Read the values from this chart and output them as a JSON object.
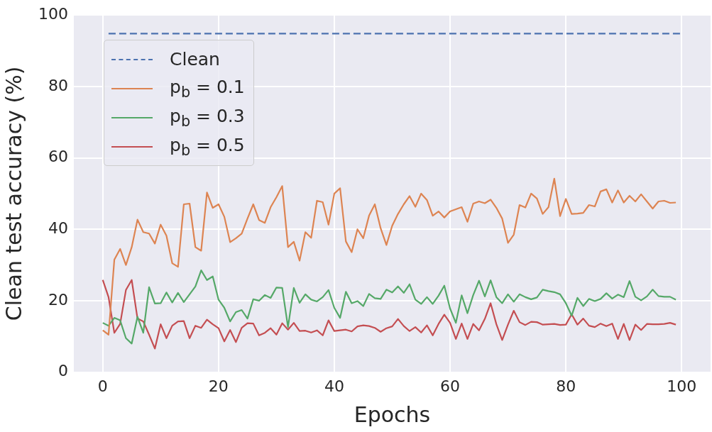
{
  "chart_data": {
    "type": "line",
    "xlabel": "Epochs",
    "ylabel": "Clean test accuracy (%)",
    "xlim": [
      -5,
      105
    ],
    "xticks": [
      0,
      20,
      40,
      60,
      80,
      100
    ],
    "ylim": [
      0,
      100
    ],
    "yticks": [
      0,
      20,
      40,
      60,
      80,
      100
    ],
    "grid": true,
    "legend": "top left",
    "marker": "none",
    "x": [
      0,
      1,
      2,
      3,
      4,
      5,
      6,
      7,
      8,
      9,
      10,
      11,
      12,
      13,
      14,
      15,
      16,
      17,
      18,
      19,
      20,
      21,
      22,
      23,
      24,
      25,
      26,
      27,
      28,
      29,
      30,
      31,
      32,
      33,
      34,
      35,
      36,
      37,
      38,
      39,
      40,
      41,
      42,
      43,
      44,
      45,
      46,
      47,
      48,
      49,
      50,
      51,
      52,
      53,
      54,
      55,
      56,
      57,
      58,
      59,
      60,
      61,
      62,
      63,
      64,
      65,
      66,
      67,
      68,
      69,
      70,
      71,
      72,
      73,
      74,
      75,
      76,
      77,
      78,
      79,
      80,
      81,
      82,
      83,
      84,
      85,
      86,
      87,
      88,
      89,
      90,
      91,
      92,
      93,
      94,
      95,
      96,
      97,
      98,
      99
    ],
    "series": [
      {
        "name": "Clean",
        "color": "#4c72b0",
        "line_style": "dashed",
        "x": [
          1,
          100
        ],
        "values": [
          94.8,
          94.8
        ]
      },
      {
        "name": "p$_{b}$ = 0.1",
        "color": "#dd8452",
        "values": [
          11.7,
          10.5,
          31.5,
          34.5,
          30,
          35,
          42.7,
          39.2,
          38.8,
          36,
          41.3,
          38.2,
          30.5,
          29.5,
          47,
          47.2,
          35,
          34,
          50.3,
          46,
          47,
          43.5,
          36.4,
          37.5,
          38.8,
          43,
          47,
          42.6,
          41.8,
          46.2,
          49,
          52.1,
          35,
          36.5,
          31.2,
          39.2,
          37.6,
          48,
          47.6,
          41.3,
          50,
          51.5,
          36.6,
          33.6,
          40,
          37.5,
          43.8,
          47,
          40.3,
          35.6,
          41,
          44.3,
          47,
          49.3,
          46.3,
          50,
          48.2,
          43.8,
          45,
          43.3,
          45,
          45.6,
          46.2,
          42.1,
          47.2,
          47.8,
          47.3,
          48.3,
          46,
          43,
          36.2,
          38.5,
          46.8,
          46.1,
          50,
          48.6,
          44.3,
          46.2,
          54.2,
          43.7,
          48.5,
          44.3,
          44.4,
          44.6,
          46.8,
          46.4,
          50.6,
          51.2,
          47.5,
          50.9,
          47.5,
          49.4,
          47.8,
          49.8,
          47.8,
          45.8,
          47.8,
          48,
          47.4,
          47.5
        ]
      },
      {
        "name": "p$_{b}$ = 0.3",
        "color": "#55a868",
        "values": [
          13.8,
          13,
          15.2,
          14.5,
          9.5,
          8,
          15.5,
          11,
          23.8,
          19.2,
          19.3,
          22.3,
          19.5,
          22.2,
          19.6,
          21.8,
          24,
          28.5,
          25.8,
          26.8,
          20.3,
          18,
          14.2,
          16.8,
          17.4,
          15,
          20.4,
          20,
          21.6,
          20.8,
          23.7,
          23.6,
          12.6,
          23.6,
          19.4,
          21.8,
          20.3,
          19.8,
          21,
          23,
          18,
          15.2,
          22.5,
          19.3,
          19.9,
          18.5,
          21.9,
          20.7,
          20.5,
          23.1,
          22.3,
          24,
          22.2,
          24.6,
          20.3,
          19.1,
          21,
          19.1,
          21.4,
          24.2,
          17.8,
          13.8,
          21.5,
          16.5,
          21.6,
          25.6,
          21.2,
          25.7,
          21,
          19.3,
          21.8,
          19.7,
          21.8,
          21,
          20.4,
          20.9,
          23.1,
          22.7,
          22.4,
          21.8,
          19.3,
          15.8,
          20.8,
          18.5,
          20.5,
          19.9,
          20.5,
          22.1,
          20.6,
          21.7,
          21,
          25.5,
          21.1,
          20.1,
          21.2,
          23.1,
          21.3,
          21.1,
          21.1,
          20.3
        ]
      },
      {
        "name": "p$_{b}$ = 0.5",
        "color": "#c44e52",
        "values": [
          25.8,
          21,
          11,
          13.5,
          23,
          25.8,
          15,
          14.2,
          10.5,
          6.6,
          13.4,
          9.5,
          13,
          14.2,
          14.3,
          9.5,
          13,
          12.4,
          14.7,
          13.4,
          12.3,
          8.6,
          11.8,
          8.4,
          12.4,
          13.7,
          13.6,
          10.3,
          11,
          12.3,
          10.5,
          13.7,
          11.9,
          13.8,
          11.5,
          11.6,
          11.1,
          11.7,
          10.3,
          14.5,
          11.5,
          11.7,
          11.9,
          11.4,
          12.8,
          13.1,
          12.9,
          12.4,
          11.3,
          12.3,
          12.8,
          14.9,
          12.9,
          11.5,
          12.6,
          11.1,
          13.1,
          10.3,
          13.5,
          16.1,
          13.8,
          9.3,
          13.6,
          9.3,
          13.5,
          11.7,
          14.9,
          19.3,
          13.4,
          9,
          13.3,
          17.2,
          14,
          13.2,
          14.1,
          14,
          13.3,
          13.4,
          13.5,
          13.2,
          13.3,
          16.2,
          13.3,
          15,
          13,
          12.6,
          13.6,
          12.9,
          13.6,
          9.3,
          13.5,
          9,
          13.3,
          11.8,
          13.5,
          13.4,
          13.4,
          13.5,
          13.8,
          13.3
        ]
      }
    ]
  }
}
